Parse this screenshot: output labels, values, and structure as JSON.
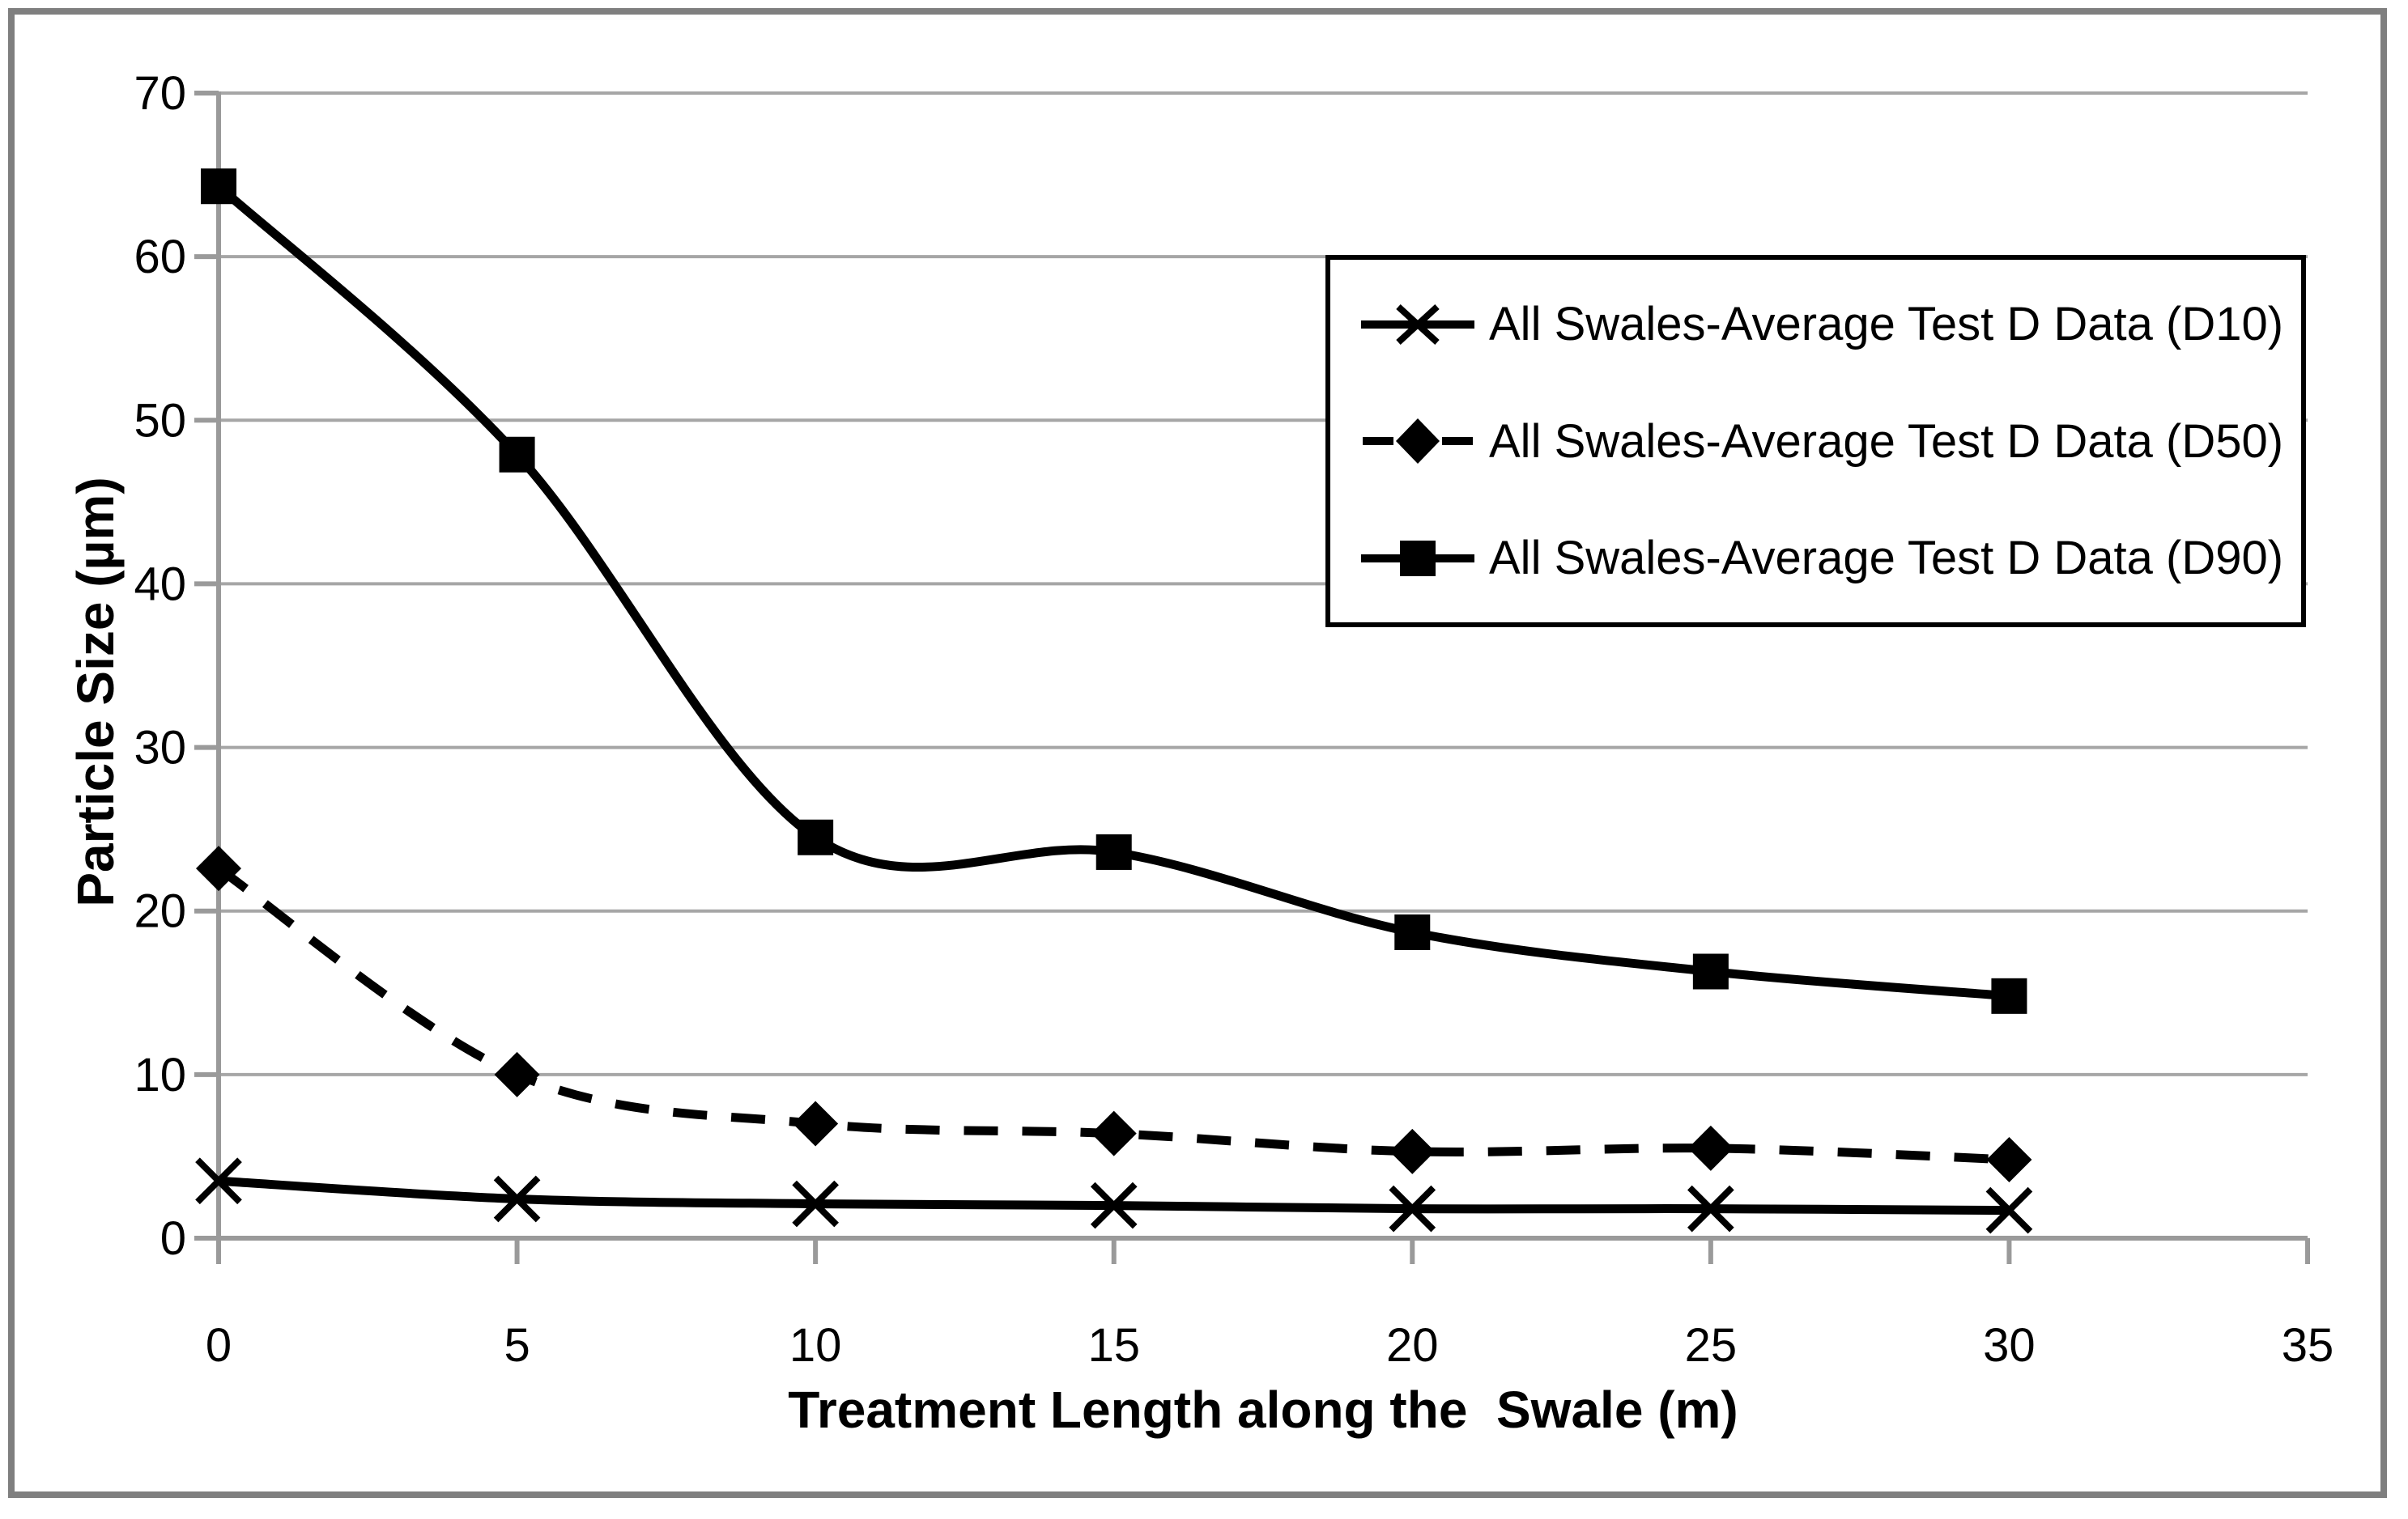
{
  "figure": {
    "background": "#FFFFFF",
    "border_color": "#7F7F7F"
  },
  "y_axis": {
    "title": "Particle Size (µm)",
    "tick_labels": [
      "0",
      "10",
      "20",
      "30",
      "40",
      "50",
      "60",
      "70"
    ],
    "min": 0,
    "max": 70,
    "step": 10
  },
  "x_axis": {
    "title": "Treatment Length along the  Swale (m)",
    "tick_labels": [
      "0",
      "5",
      "10",
      "15",
      "20",
      "25",
      "30",
      "35"
    ],
    "min": 0,
    "max": 35,
    "step": 5
  },
  "legend": {
    "items": [
      {
        "label": "All Swales-Average Test D Data (D10)",
        "marker": "x-cross",
        "line": "solid"
      },
      {
        "label": "All Swales-Average Test D Data (D50)",
        "marker": "diamond",
        "line": "dashed"
      },
      {
        "label": "All Swales-Average Test D Data (D90)",
        "marker": "square",
        "line": "solid"
      }
    ]
  },
  "chart_data": {
    "type": "line",
    "title": "",
    "x": [
      0,
      5,
      10,
      15,
      20,
      25,
      30
    ],
    "series": [
      {
        "name": "All Swales-Average Test D Data (D10)",
        "marker": "x-cross",
        "line": "solid",
        "values": [
          3.5,
          2.4,
          2.1,
          2.0,
          1.8,
          1.8,
          1.7
        ]
      },
      {
        "name": "All Swales-Average Test D Data (D50)",
        "marker": "diamond",
        "line": "dashed",
        "values": [
          22.6,
          10.0,
          7.0,
          6.4,
          5.3,
          5.5,
          4.8
        ]
      },
      {
        "name": "All Swales-Average Test D Data (D90)",
        "marker": "square",
        "line": "solid",
        "values": [
          64.3,
          47.9,
          24.5,
          23.6,
          18.7,
          16.3,
          14.8
        ]
      }
    ],
    "xlabel": "Treatment Length along the  Swale (m)",
    "ylabel": "Particle Size (µm)",
    "xlim": [
      0,
      35
    ],
    "ylim": [
      0,
      70
    ],
    "grid": "horizontal",
    "legend_position": "top-right",
    "smoothed_lines": true,
    "colors": {
      "series": "#000000",
      "grid": "#A6A6A6",
      "axis": "#9A9A9A"
    }
  }
}
